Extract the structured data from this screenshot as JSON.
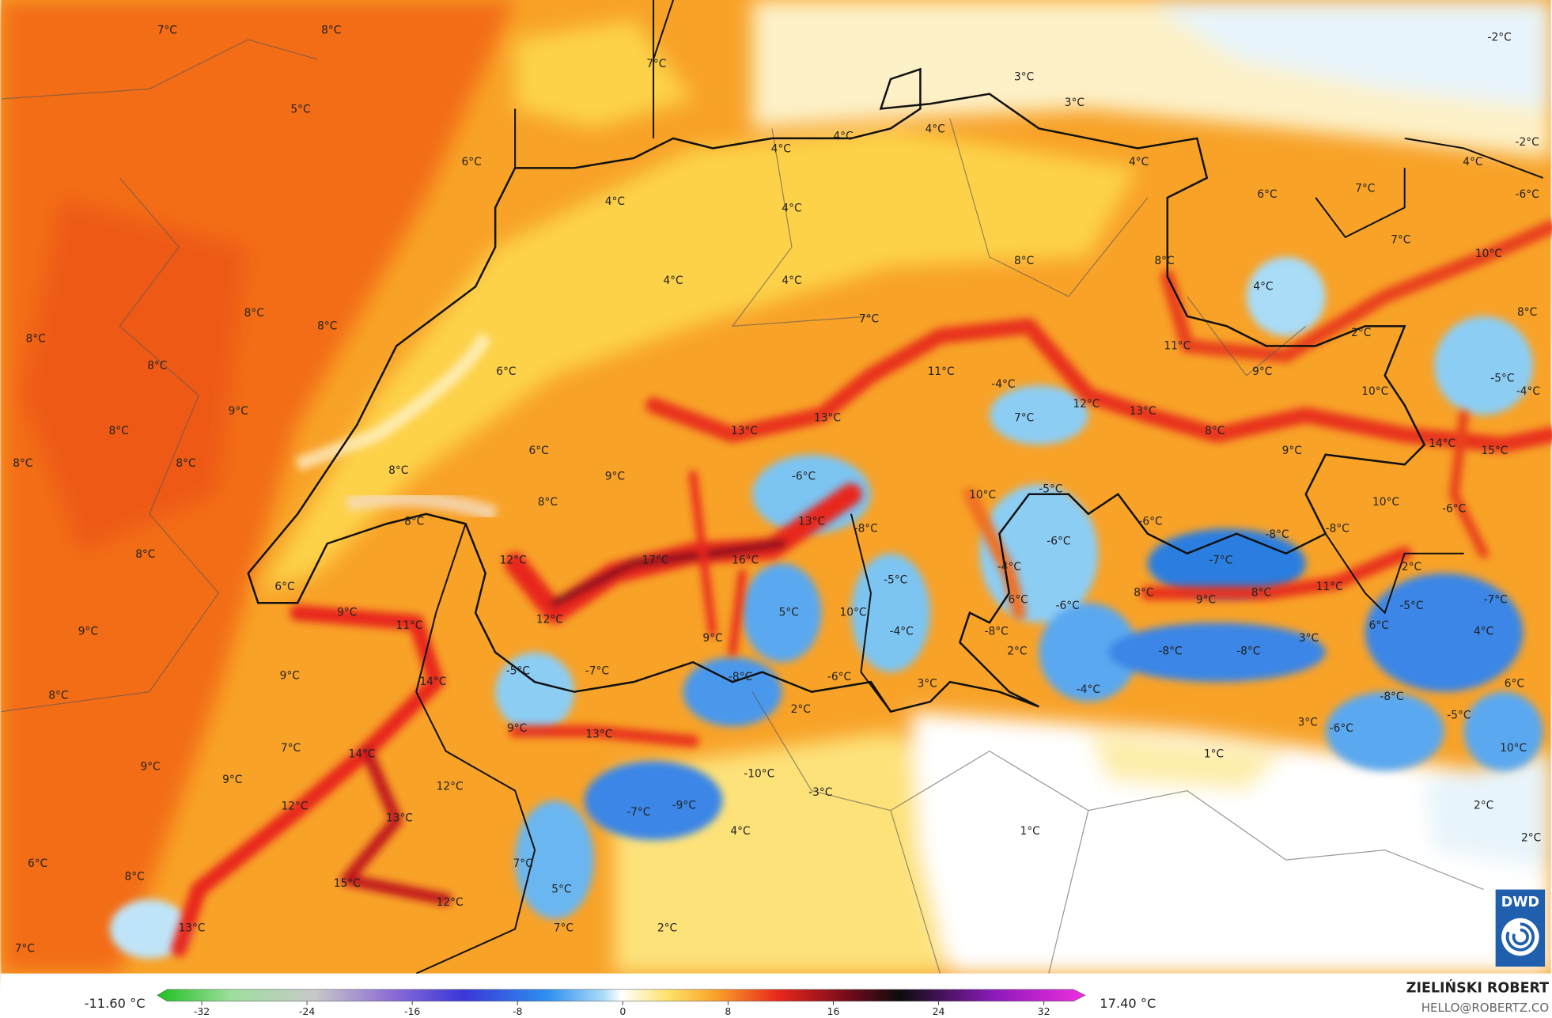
{
  "map": {
    "labels": [
      "7°C",
      "8°C",
      "7°C",
      "-2°C",
      "3°C",
      "3°C",
      "5°C",
      "4°C",
      "4°C",
      "4°C",
      "6°C",
      "4°C",
      "4°C",
      "-2°C",
      "7°C",
      "6°C",
      "-6°C",
      "4°C",
      "4°C",
      "7°C",
      "10°C",
      "8°C",
      "8°C",
      "4°C",
      "4°C",
      "4°C",
      "8°C",
      "8°C",
      "7°C",
      "8°C",
      "2°C",
      "8°C",
      "8°C",
      "6°C",
      "11°C",
      "11°C",
      "9°C",
      "-4°C",
      "-5°C",
      "10°C",
      "-4°C",
      "9°C",
      "12°C",
      "13°C",
      "8°C",
      "13°C",
      "13°C",
      "7°C",
      "8°C",
      "14°C",
      "15°C",
      "8°C",
      "8°C",
      "6°C",
      "9°C",
      "8°C",
      "9°C",
      "-6°C",
      "-5°C",
      "10°C",
      "8°C",
      "10°C",
      "-6°C",
      "8°C",
      "13°C",
      "-8°C",
      "-6°C",
      "-8°C",
      "8°C",
      "-6°C",
      "-8°C",
      "12°C",
      "17°C",
      "16°C",
      "-7°C",
      "-4°C",
      "6°C",
      "-5°C",
      "2°C",
      "8°C",
      "9°C",
      "8°C",
      "11°C",
      "-5°C",
      "-7°C",
      "6°C",
      "-6°C",
      "9°C",
      "11°C",
      "12°C",
      "5°C",
      "10°C",
      "9°C",
      "-4°C",
      "-8°C",
      "6°C",
      "4°C",
      "9°C",
      "-8°C",
      "-8°C",
      "3°C",
      "2°C",
      "9°C",
      "14°C",
      "-5°C",
      "-7°C",
      "-8°C",
      "-6°C",
      "3°C",
      "6°C",
      "-4°C",
      "8°C",
      "-8°C",
      "2°C",
      "-5°C",
      "3°C",
      "9°C",
      "13°C",
      "-6°C",
      "7°C",
      "14°C",
      "1°C",
      "10°C",
      "9°C",
      "-10°C",
      "9°C",
      "12°C",
      "-3°C",
      "12°C",
      "-7°C",
      "-9°C",
      "2°C",
      "13°C",
      "4°C",
      "1°C",
      "2°C",
      "6°C",
      "7°C",
      "8°C",
      "15°C",
      "5°C",
      "12°C",
      "13°C",
      "7°C",
      "2°C",
      "7°C"
    ]
  },
  "legend": {
    "min": "-11.60 °C",
    "max": "17.40 °C",
    "ticks": [
      -32,
      -24,
      -16,
      -8,
      0,
      8,
      16,
      24,
      32
    ]
  },
  "credit": {
    "author": "ZIELIŃSKI ROBERT",
    "contact": "HELLO@ROBERTZ.CO"
  },
  "logo": "DWD"
}
